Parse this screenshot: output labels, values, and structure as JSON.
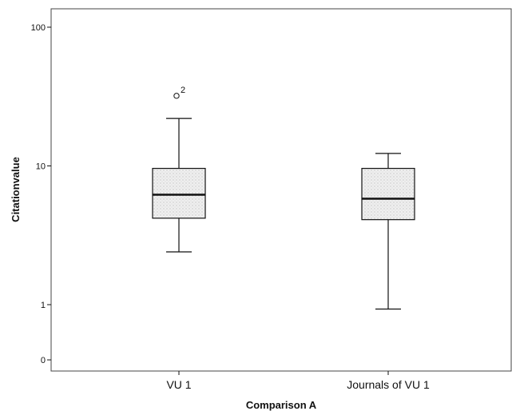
{
  "chart_data": {
    "type": "boxplot",
    "title": "",
    "xlabel": "Comparison A",
    "ylabel": "Citationvalue",
    "y_scale": "log",
    "y_ticks": [
      {
        "value": 100,
        "label": "100"
      },
      {
        "value": 10,
        "label": "10"
      },
      {
        "value": 1,
        "label": "1"
      },
      {
        "value": 0.4,
        "label": "0"
      }
    ],
    "ylim": [
      0.3,
      110
    ],
    "grid": false,
    "categories": [
      "VU 1",
      "Journals of VU 1"
    ],
    "boxes": [
      {
        "category": "VU 1",
        "whisker_low": 2.4,
        "q1": 4.2,
        "median": 6.2,
        "q3": 9.6,
        "whisker_high": 22,
        "outliers": [
          {
            "value": 32,
            "label": "2"
          }
        ]
      },
      {
        "category": "Journals of VU 1",
        "whisker_low": 0.93,
        "q1": 4.1,
        "median": 5.8,
        "q3": 9.6,
        "whisker_high": 12.3,
        "outliers": []
      }
    ],
    "colors": {
      "box_fill": "#e6e6e6",
      "line": "#111111",
      "frame": "#444444"
    }
  }
}
